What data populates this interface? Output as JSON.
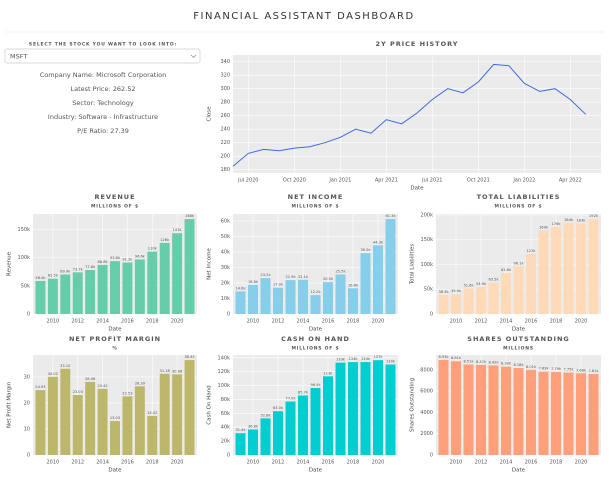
{
  "header": {
    "title": "FINANCIAL ASSISTANT DASHBOARD"
  },
  "selector": {
    "label": "SELECT THE STOCK YOU WANT TO LOOK INTO:",
    "value": "MSFT"
  },
  "info": [
    "Company Name: Microsoft Corporation",
    "Latest Price: 262.52",
    "Sector: Technology",
    "Industry: Software - Infrastructure",
    "P/E Ratio: 27.39"
  ],
  "chart_data": [
    {
      "type": "line",
      "title": "2Y PRICE HISTORY",
      "xlabel": "Date",
      "ylabel": "Close",
      "color": "#4169e1",
      "grid": true,
      "x": [
        "2020-06",
        "2020-07",
        "2020-08",
        "2020-09",
        "2020-10",
        "2020-11",
        "2020-12",
        "2021-01",
        "2021-02",
        "2021-03",
        "2021-04",
        "2021-05",
        "2021-06",
        "2021-07",
        "2021-08",
        "2021-09",
        "2021-10",
        "2021-11",
        "2021-12",
        "2022-01",
        "2022-02",
        "2022-03",
        "2022-04",
        "2022-05"
      ],
      "values": [
        185,
        204,
        210,
        208,
        212,
        214,
        220,
        228,
        240,
        234,
        254,
        248,
        264,
        284,
        300,
        294,
        310,
        336,
        334,
        308,
        296,
        300,
        284,
        262
      ],
      "xlim": [
        "2020-06",
        "2022-06"
      ],
      "ylim": [
        175,
        350
      ],
      "xticks": [
        {
          "value": "2020-07",
          "label": "Jul 2020"
        },
        {
          "value": "2020-10",
          "label": "Oct 2020"
        },
        {
          "value": "2021-01",
          "label": "Jan 2021"
        },
        {
          "value": "2021-04",
          "label": "Apr 2021"
        },
        {
          "value": "2021-07",
          "label": "Jul 2021"
        },
        {
          "value": "2021-10",
          "label": "Oct 2021"
        },
        {
          "value": "2022-01",
          "label": "Jan 2022"
        },
        {
          "value": "2022-04",
          "label": "Apr 2022"
        }
      ],
      "yticks": [
        180,
        200,
        220,
        240,
        260,
        280,
        300,
        320,
        340
      ]
    },
    {
      "type": "bar",
      "title": "REVENUE",
      "subtitle": "MILLIONS OF $",
      "xlabel": "Date",
      "ylabel": "Revenue",
      "color": "#66cdaa",
      "grid": true,
      "x": [
        2009,
        2010,
        2011,
        2012,
        2013,
        2014,
        2015,
        2016,
        2017,
        2018,
        2019,
        2020,
        2021
      ],
      "values": [
        58437,
        62484,
        69943,
        73723,
        77849,
        86833,
        93580,
        91154,
        96571,
        110360,
        125843,
        143015,
        168088
      ],
      "value_labels": [
        "58.4k",
        "62.5k",
        "69.9k",
        "73.7k",
        "77.8k",
        "86.8k",
        "93.6k",
        "91.2k",
        "96.6k",
        "110k",
        "126k",
        "143k",
        "168k"
      ],
      "xlim": [
        2008.4,
        2021.6
      ],
      "ylim": [
        0,
        177000
      ],
      "xticks": [
        2010,
        2012,
        2014,
        2016,
        2018,
        2020
      ],
      "yticks": [
        0,
        {
          "value": 50000,
          "label": "50k"
        },
        {
          "value": 100000,
          "label": "100k"
        },
        {
          "value": 150000,
          "label": "150k"
        }
      ]
    },
    {
      "type": "bar",
      "title": "NET INCOME",
      "subtitle": "MILLIONS OF $",
      "xlabel": "Date",
      "ylabel": "Net Income",
      "color": "#87ceeb",
      "grid": true,
      "x": [
        2009,
        2010,
        2011,
        2012,
        2013,
        2014,
        2015,
        2016,
        2017,
        2018,
        2019,
        2020,
        2021
      ],
      "values": [
        14569,
        18760,
        23150,
        16978,
        21863,
        22074,
        12193,
        20539,
        25489,
        16571,
        39240,
        44281,
        61271
      ],
      "value_labels": [
        "14.6k",
        "18.8k",
        "23.2k",
        "17.0k",
        "21.9k",
        "22.1k",
        "12.2k",
        "20.5k",
        "25.5k",
        "16.6k",
        "39.2k",
        "44.3k",
        "61.3k"
      ],
      "xlim": [
        2008.4,
        2021.6
      ],
      "ylim": [
        0,
        64500
      ],
      "xticks": [
        2010,
        2012,
        2014,
        2016,
        2018,
        2020
      ],
      "yticks": [
        0,
        {
          "value": 10000,
          "label": "10k"
        },
        {
          "value": 20000,
          "label": "20k"
        },
        {
          "value": 30000,
          "label": "30k"
        },
        {
          "value": 40000,
          "label": "40k"
        },
        {
          "value": 50000,
          "label": "50k"
        },
        {
          "value": 60000,
          "label": "60k"
        }
      ]
    },
    {
      "type": "bar",
      "title": "TOTAL LIABILITIES",
      "subtitle": "MILLIONS OF $",
      "xlabel": "Date",
      "ylabel": "Total Liabilities",
      "color": "#ffdab9",
      "grid": true,
      "x": [
        2009,
        2010,
        2011,
        2012,
        2013,
        2014,
        2015,
        2016,
        2017,
        2018,
        2019,
        2020,
        2021
      ],
      "values": [
        38330,
        39938,
        51621,
        54908,
        63487,
        82600,
        96140,
        121697,
        168692,
        176130,
        184226,
        183007,
        191791
      ],
      "value_labels": [
        "38.3k",
        "39.9k",
        "51.6k",
        "54.9k",
        "63.5k",
        "82.6k",
        "96.1k",
        "122k",
        "169k",
        "176k",
        "184k",
        "183k",
        "192k"
      ],
      "xlim": [
        2008.4,
        2021.6
      ],
      "ylim": [
        0,
        202000
      ],
      "xticks": [
        2010,
        2012,
        2014,
        2016,
        2018,
        2020
      ],
      "yticks": [
        0,
        {
          "value": 50000,
          "label": "50k"
        },
        {
          "value": 100000,
          "label": "100k"
        },
        {
          "value": 150000,
          "label": "150k"
        },
        {
          "value": 200000,
          "label": "200k"
        }
      ]
    },
    {
      "type": "bar",
      "title": "NET PROFIT MARGIN",
      "subtitle": "%",
      "xlabel": "Date",
      "ylabel": "Net Profit Margin",
      "color": "#bdb76b",
      "grid": true,
      "x": [
        2009,
        2010,
        2011,
        2012,
        2013,
        2014,
        2015,
        2016,
        2017,
        2018,
        2019,
        2020,
        2021
      ],
      "values": [
        24.93,
        30.02,
        33.1,
        23.03,
        28.08,
        25.42,
        13.03,
        22.53,
        26.39,
        15.02,
        31.18,
        30.96,
        36.45
      ],
      "value_labels": [
        "24.93",
        "30.02",
        "33.10",
        "23.03",
        "28.08",
        "25.42",
        "13.03",
        "22.53",
        "26.39",
        "15.02",
        "31.18",
        "30.96",
        "36.45"
      ],
      "xlim": [
        2008.4,
        2021.6
      ],
      "ylim": [
        0,
        38.4
      ],
      "xticks": [
        2010,
        2012,
        2014,
        2016,
        2018,
        2020
      ],
      "yticks": [
        0,
        10,
        20,
        30
      ]
    },
    {
      "type": "bar",
      "title": "CASH ON HAND",
      "subtitle": "MILLIONS OF $",
      "xlabel": "Date",
      "ylabel": "Cash On Hand",
      "color": "#00ced1",
      "grid": true,
      "x": [
        2009,
        2010,
        2011,
        2012,
        2013,
        2014,
        2015,
        2016,
        2017,
        2018,
        2019,
        2020,
        2021
      ],
      "values": [
        31447,
        36788,
        52772,
        63040,
        77022,
        85709,
        96526,
        113240,
        132981,
        133768,
        133819,
        136527,
        130334
      ],
      "value_labels": [
        "31.4k",
        "36.8k",
        "52.8k",
        "63.0k",
        "77.0k",
        "85.7k",
        "96.5k",
        "113k",
        "133k",
        "134k",
        "134k",
        "137k",
        "130k"
      ],
      "xlim": [
        2008.4,
        2021.6
      ],
      "ylim": [
        0,
        144000
      ],
      "xticks": [
        2010,
        2012,
        2014,
        2016,
        2018,
        2020
      ],
      "yticks": [
        0,
        {
          "value": 20000,
          "label": "20k"
        },
        {
          "value": 40000,
          "label": "40k"
        },
        {
          "value": 60000,
          "label": "60k"
        },
        {
          "value": 80000,
          "label": "80k"
        },
        {
          "value": 100000,
          "label": "100k"
        },
        {
          "value": 120000,
          "label": "120k"
        },
        {
          "value": 140000,
          "label": "140k"
        }
      ]
    },
    {
      "type": "bar",
      "title": "SHARES OUTSTANDING",
      "subtitle": "MILLIONS",
      "xlabel": "Date",
      "ylabel": "Shares Outstanding",
      "color": "#ffa07a",
      "grid": true,
      "x": [
        2009,
        2010,
        2011,
        2012,
        2013,
        2014,
        2015,
        2016,
        2017,
        2018,
        2019,
        2020,
        2021
      ],
      "values": [
        8927,
        8813,
        8506,
        8470,
        8420,
        8299,
        8177,
        8013,
        7832,
        7794,
        7753,
        7683,
        7610
      ],
      "value_labels": [
        "8.93k",
        "8.81k",
        "8.51k",
        "8.47k",
        "8.42k",
        "8.30k",
        "8.18k",
        "8.01k",
        "7.83k",
        "7.79k",
        "7.75k",
        "7.68k",
        "7.61k"
      ],
      "xlim": [
        2008.4,
        2021.6
      ],
      "ylim": [
        0,
        9400
      ],
      "xticks": [
        2010,
        2012,
        2014,
        2016,
        2018,
        2020
      ],
      "yticks": [
        0,
        2000,
        4000,
        6000,
        8000
      ]
    }
  ]
}
